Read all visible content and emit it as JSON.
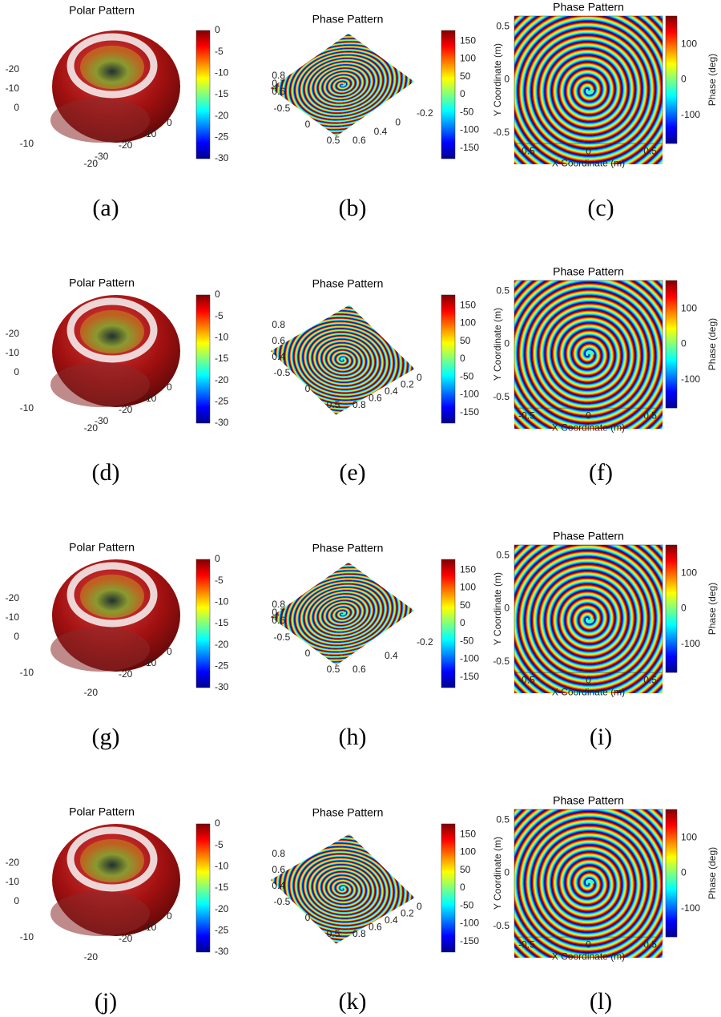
{
  "rows": [
    {
      "polar": {
        "title": "Polar Pattern",
        "colorbar_ticks": [
          0,
          -5,
          -10,
          -15,
          -20,
          -25,
          -30
        ],
        "z_ticks": [
          -20,
          -10,
          0
        ],
        "x_ticks": [
          -10,
          -20
        ],
        "y_ticks": [
          -30,
          -20,
          -10,
          0
        ],
        "caption": "(a)"
      },
      "phase_3d": {
        "title": "Phase Pattern",
        "colorbar_ticks": [
          150,
          100,
          50,
          0,
          -50,
          -100,
          -150
        ],
        "z_ticks": [
          0.8,
          0.7,
          0.6
        ],
        "x_ticks": [
          -0.5,
          0,
          0.5
        ],
        "y_ticks": [
          0.6,
          0.4,
          0,
          -0.2
        ],
        "caption": "(b)"
      },
      "phase_map": {
        "title": "Phase Pattern",
        "colorbar_ticks": [
          100,
          0,
          -100
        ],
        "colorbar_label": "Phase (deg)",
        "x_label": "X Coordinate (m)",
        "y_label": "Y Coordinate (m)",
        "x_ticks": [
          -0.5,
          0,
          0.5
        ],
        "y_ticks": [
          0.5,
          0,
          -0.5
        ],
        "caption": "(c)"
      }
    },
    {
      "polar": {
        "title": "Polar Pattern",
        "colorbar_ticks": [
          0,
          -5,
          -10,
          -15,
          -20,
          -25,
          -30
        ],
        "z_ticks": [
          -20,
          -10,
          0
        ],
        "x_ticks": [
          -10,
          -20
        ],
        "y_ticks": [
          -30,
          -20,
          -10,
          0
        ],
        "caption": "(d)"
      },
      "phase_3d": {
        "title": "Phase Pattern",
        "colorbar_ticks": [
          150,
          100,
          50,
          0,
          -50,
          -100,
          -150
        ],
        "z_ticks": [
          0.8,
          0.6,
          0.4
        ],
        "x_ticks": [
          -0.5,
          0,
          0.5
        ],
        "y_ticks": [
          0.8,
          0.6,
          0.4,
          0.2,
          0
        ],
        "caption": "(e)"
      },
      "phase_map": {
        "title": "Phase Pattern",
        "colorbar_ticks": [
          100,
          0,
          -100
        ],
        "colorbar_label": "Phase (deg)",
        "x_label": "X Coordinate (m)",
        "y_label": "Y Coordinate (m)",
        "x_ticks": [
          -0.5,
          0,
          0.5
        ],
        "y_ticks": [
          0.5,
          0,
          -0.5
        ],
        "caption": "(f)"
      }
    },
    {
      "polar": {
        "title": "Polar Pattern",
        "colorbar_ticks": [
          0,
          -5,
          -10,
          -15,
          -20,
          -25,
          -30
        ],
        "z_ticks": [
          -20,
          -10,
          0
        ],
        "x_ticks": [
          -10,
          -20
        ],
        "y_ticks": [
          -20,
          -10,
          0
        ],
        "caption": "(g)"
      },
      "phase_3d": {
        "title": "Phase Pattern",
        "colorbar_ticks": [
          150,
          100,
          50,
          0,
          -50,
          -100,
          -150
        ],
        "z_ticks": [
          0.8,
          0.7,
          0.6
        ],
        "x_ticks": [
          -0.5,
          0,
          0.5
        ],
        "y_ticks": [
          0.6,
          0.4,
          -0.2
        ],
        "caption": "(h)"
      },
      "phase_map": {
        "title": "Phase Pattern",
        "colorbar_ticks": [
          100,
          0,
          -100
        ],
        "colorbar_label": "Phase (deg)",
        "x_label": "X Coordinate (m)",
        "y_label": "Y Coordinate (m)",
        "x_ticks": [
          -0.5,
          0,
          0.5
        ],
        "y_ticks": [
          0.5,
          0,
          -0.5
        ],
        "caption": "(i)"
      }
    },
    {
      "polar": {
        "title": "Polar Pattern",
        "colorbar_ticks": [
          0,
          -5,
          -10,
          -15,
          -20,
          -25,
          -30
        ],
        "z_ticks": [
          -20,
          -10,
          0
        ],
        "x_ticks": [
          -10,
          -20
        ],
        "y_ticks": [
          -20,
          -10,
          0
        ],
        "caption": "(j)"
      },
      "phase_3d": {
        "title": "Phase Pattern",
        "colorbar_ticks": [
          150,
          100,
          50,
          0,
          -50,
          -100,
          -150
        ],
        "z_ticks": [
          0.8,
          0.6,
          0.4
        ],
        "x_ticks": [
          -0.5,
          0,
          0.5
        ],
        "y_ticks": [
          0.8,
          0.6,
          0.4,
          0.2,
          0
        ],
        "caption": "(k)"
      },
      "phase_map": {
        "title": "Phase Pattern",
        "colorbar_ticks": [
          100,
          0,
          -100
        ],
        "colorbar_label": "Phase (deg)",
        "x_label": "X Coordinate (m)",
        "y_label": "Y Coordinate (m)",
        "x_ticks": [
          -0.5,
          0,
          0.5
        ],
        "y_ticks": [
          0.5,
          0,
          -0.5
        ],
        "caption": "(l)"
      }
    }
  ]
}
